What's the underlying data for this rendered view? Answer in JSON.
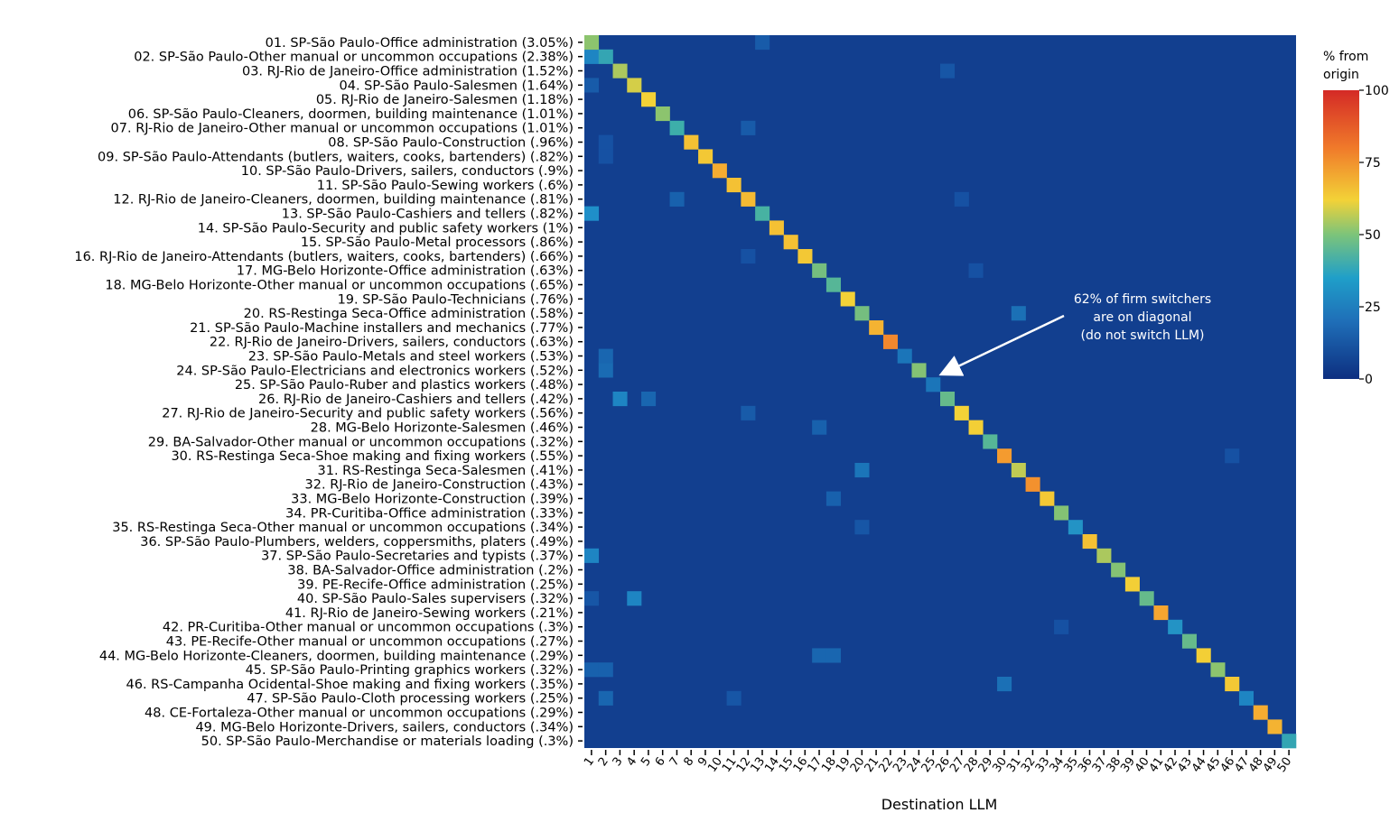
{
  "chart_data": {
    "type": "heatmap",
    "ylabels": [
      "01. SP-São Paulo-Office administration (3.05%)",
      "02. SP-São Paulo-Other manual or uncommon occupations (2.38%)",
      "03. RJ-Rio de Janeiro-Office administration (1.52%)",
      "04. SP-São Paulo-Salesmen (1.64%)",
      "05. RJ-Rio de Janeiro-Salesmen (1.18%)",
      "06. SP-São Paulo-Cleaners, doormen, building maintenance (1.01%)",
      "07. RJ-Rio de Janeiro-Other manual or uncommon occupations (1.01%)",
      "08. SP-São Paulo-Construction (.96%)",
      "09. SP-São Paulo-Attendants (butlers, waiters, cooks, bartenders) (.82%)",
      "10. SP-São Paulo-Drivers, sailers, conductors (.9%)",
      "11. SP-São Paulo-Sewing workers (.6%)",
      "12. RJ-Rio de Janeiro-Cleaners, doormen, building maintenance (.81%)",
      "13. SP-São Paulo-Cashiers and tellers (.82%)",
      "14. SP-São Paulo-Security and public safety workers (1%)",
      "15. SP-São Paulo-Metal processors (.86%)",
      "16. RJ-Rio de Janeiro-Attendants (butlers, waiters, cooks, bartenders) (.66%)",
      "17. MG-Belo Horizonte-Office administration (.63%)",
      "18. MG-Belo Horizonte-Other manual or uncommon occupations (.65%)",
      "19. SP-São Paulo-Technicians (.76%)",
      "20. RS-Restinga Seca-Office administration (.58%)",
      "21. SP-São Paulo-Machine installers and mechanics (.77%)",
      "22. RJ-Rio de Janeiro-Drivers, sailers, conductors (.63%)",
      "23. SP-São Paulo-Metals and steel workers (.53%)",
      "24. SP-São Paulo-Electricians and electronics workers (.52%)",
      "25. SP-São Paulo-Ruber and plastics workers (.48%)",
      "26. RJ-Rio de Janeiro-Cashiers and tellers (.42%)",
      "27. RJ-Rio de Janeiro-Security and public safety workers (.56%)",
      "28. MG-Belo Horizonte-Salesmen (.46%)",
      "29. BA-Salvador-Other manual or uncommon occupations (.32%)",
      "30. RS-Restinga Seca-Shoe making and fixing workers (.55%)",
      "31. RS-Restinga Seca-Salesmen (.41%)",
      "32. RJ-Rio de Janeiro-Construction (.43%)",
      "33. MG-Belo Horizonte-Construction (.39%)",
      "34. PR-Curitiba-Office administration (.33%)",
      "35. RS-Restinga Seca-Other manual or uncommon occupations (.34%)",
      "36. SP-São Paulo-Plumbers, welders, coppersmiths, platers (.49%)",
      "37. SP-São Paulo-Secretaries and typists (.37%)",
      "38. BA-Salvador-Office administration (.2%)",
      "39. PE-Recife-Office administration (.25%)",
      "40. SP-São Paulo-Sales supervisers (.32%)",
      "41. RJ-Rio de Janeiro-Sewing workers (.21%)",
      "42. PR-Curitiba-Other manual or uncommon occupations (.3%)",
      "43. PE-Recife-Other manual or uncommon occupations (.27%)",
      "44. MG-Belo Horizonte-Cleaners, doormen, building maintenance (.29%)",
      "45. SP-São Paulo-Printing graphics workers (.32%)",
      "46. RS-Campanha Ocidental-Shoe making and fixing workers (.35%)",
      "47. SP-São Paulo-Cloth processing workers (.25%)",
      "48. CE-Fortaleza-Other manual or uncommon occupations (.29%)",
      "49. MG-Belo Horizonte-Drivers, sailers, conductors (.34%)",
      "50. SP-São Paulo-Merchandise or materials loading (.3%)"
    ],
    "xlabels": [
      "1",
      "2",
      "3",
      "4",
      "5",
      "6",
      "7",
      "8",
      "9",
      "10",
      "11",
      "12",
      "13",
      "14",
      "15",
      "16",
      "17",
      "18",
      "19",
      "20",
      "21",
      "22",
      "23",
      "24",
      "25",
      "26",
      "27",
      "28",
      "29",
      "30",
      "31",
      "32",
      "33",
      "34",
      "35",
      "36",
      "37",
      "38",
      "39",
      "40",
      "41",
      "42",
      "43",
      "44",
      "45",
      "46",
      "47",
      "48",
      "49",
      "50"
    ],
    "xlabel": "Destination LLM",
    "diagonal": [
      45,
      30,
      48,
      52,
      55,
      45,
      34,
      60,
      58,
      66,
      60,
      62,
      36,
      60,
      60,
      58,
      42,
      38,
      55,
      42,
      64,
      74,
      15,
      44,
      15,
      40,
      55,
      56,
      38,
      70,
      50,
      72,
      58,
      44,
      22,
      60,
      48,
      44,
      56,
      40,
      68,
      22,
      40,
      56,
      45,
      58,
      18,
      66,
      64,
      30
    ],
    "off_diagonal": [
      {
        "row": 2,
        "col": 1,
        "value": 18
      },
      {
        "row": 13,
        "col": 1,
        "value": 20
      },
      {
        "row": 37,
        "col": 1,
        "value": 18
      },
      {
        "row": 26,
        "col": 3,
        "value": 18
      },
      {
        "row": 40,
        "col": 4,
        "value": 18
      },
      {
        "row": 31,
        "col": 20,
        "value": 15
      },
      {
        "row": 20,
        "col": 31,
        "value": 14
      },
      {
        "row": 46,
        "col": 30,
        "value": 14
      },
      {
        "row": 24,
        "col": 2,
        "value": 13
      },
      {
        "row": 23,
        "col": 2,
        "value": 12
      },
      {
        "row": 26,
        "col": 5,
        "value": 12
      },
      {
        "row": 44,
        "col": 17,
        "value": 12
      },
      {
        "row": 44,
        "col": 18,
        "value": 12
      },
      {
        "row": 47,
        "col": 2,
        "value": 12
      },
      {
        "row": 45,
        "col": 1,
        "value": 11
      },
      {
        "row": 45,
        "col": 2,
        "value": 11
      },
      {
        "row": 12,
        "col": 7,
        "value": 11
      },
      {
        "row": 28,
        "col": 17,
        "value": 11
      },
      {
        "row": 33,
        "col": 18,
        "value": 11
      },
      {
        "row": 4,
        "col": 1,
        "value": 10
      },
      {
        "row": 1,
        "col": 13,
        "value": 10
      },
      {
        "row": 7,
        "col": 12,
        "value": 10
      },
      {
        "row": 27,
        "col": 12,
        "value": 10
      },
      {
        "row": 40,
        "col": 1,
        "value": 9
      },
      {
        "row": 3,
        "col": 26,
        "value": 9
      },
      {
        "row": 35,
        "col": 20,
        "value": 9
      },
      {
        "row": 47,
        "col": 11,
        "value": 9
      },
      {
        "row": 9,
        "col": 2,
        "value": 8
      },
      {
        "row": 8,
        "col": 2,
        "value": 8
      },
      {
        "row": 16,
        "col": 12,
        "value": 8
      },
      {
        "row": 12,
        "col": 27,
        "value": 8
      },
      {
        "row": 17,
        "col": 28,
        "value": 8
      },
      {
        "row": 30,
        "col": 46,
        "value": 8
      },
      {
        "row": 42,
        "col": 34,
        "value": 8
      }
    ],
    "colorbar": {
      "title": [
        "% from",
        "origin"
      ],
      "ticks": [
        100,
        75,
        50,
        25,
        0
      ],
      "range": [
        0,
        100
      ]
    },
    "colors": {
      "base": "#123f8f",
      "scale": [
        "#0d2f80",
        "#1f8fc9",
        "#5bbf8e",
        "#f3d237",
        "#f07a2a",
        "#d42a26"
      ]
    }
  },
  "annotation": {
    "lines": [
      "62% of firm switchers",
      "are on diagonal",
      "(do not switch LLM)"
    ],
    "color": "#ffffff"
  }
}
